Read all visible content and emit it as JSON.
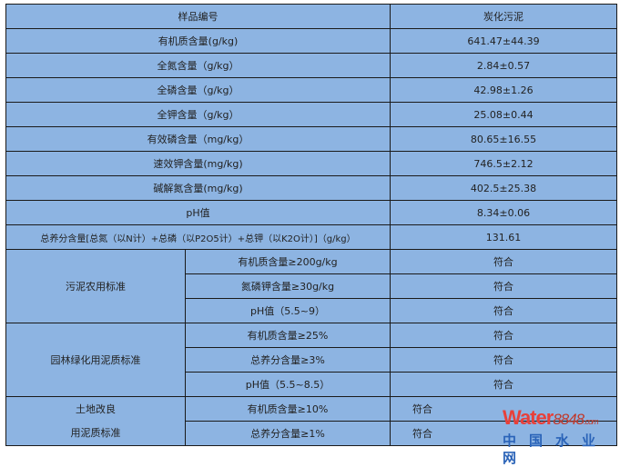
{
  "header": {
    "sample": "样品编号",
    "value": "炭化污泥"
  },
  "rows": [
    {
      "label": "有机质含量(g/kg)",
      "value": "641.47±44.39"
    },
    {
      "label": "全氮含量（g/kg）",
      "value": "2.84±0.57"
    },
    {
      "label": "全磷含量（g/kg）",
      "value": "42.98±1.26"
    },
    {
      "label": "全钾含量（g/kg）",
      "value": "25.08±0.44"
    },
    {
      "label": "有效磷含量（mg/kg）",
      "value": "80.65±16.55"
    },
    {
      "label": "速效钾含量(mg/kg)",
      "value": "746.5±2.12"
    },
    {
      "label": "碱解氮含量(mg/kg)",
      "value": "402.5±25.38"
    },
    {
      "label": "pH值",
      "value": "8.34±0.06"
    },
    {
      "label": "总养分含量[总氮（以N计）+总磷（以P2O5计）+总钾（以K2O计）]（g/kg）",
      "value": "131.61"
    }
  ],
  "standards": [
    {
      "name": "污泥农用标准",
      "items": [
        {
          "criterion": "有机质含量≥200g/kg",
          "result": "符合"
        },
        {
          "criterion": "氮磷钾含量≥30g/kg",
          "result": "符合"
        },
        {
          "criterion": "pH值（5.5~9）",
          "result": "符合"
        }
      ]
    },
    {
      "name": "园林绿化用泥质标准",
      "items": [
        {
          "criterion": "有机质含量≥25%",
          "result": "符合"
        },
        {
          "criterion": "总养分含量≥3%",
          "result": "符合"
        },
        {
          "criterion": "pH值（5.5~8.5）",
          "result": "符合"
        }
      ]
    },
    {
      "name_line1": "土地改良",
      "name_line2": "用泥质标准",
      "items": [
        {
          "criterion": "有机质含量≥10%",
          "result": "符合"
        },
        {
          "criterion": "总养分含量≥1%",
          "result": "符合"
        }
      ]
    }
  ],
  "watermark": {
    "brand": "Water",
    "number": "8848",
    "suffix": ".com",
    "cn": "中国水业网"
  }
}
